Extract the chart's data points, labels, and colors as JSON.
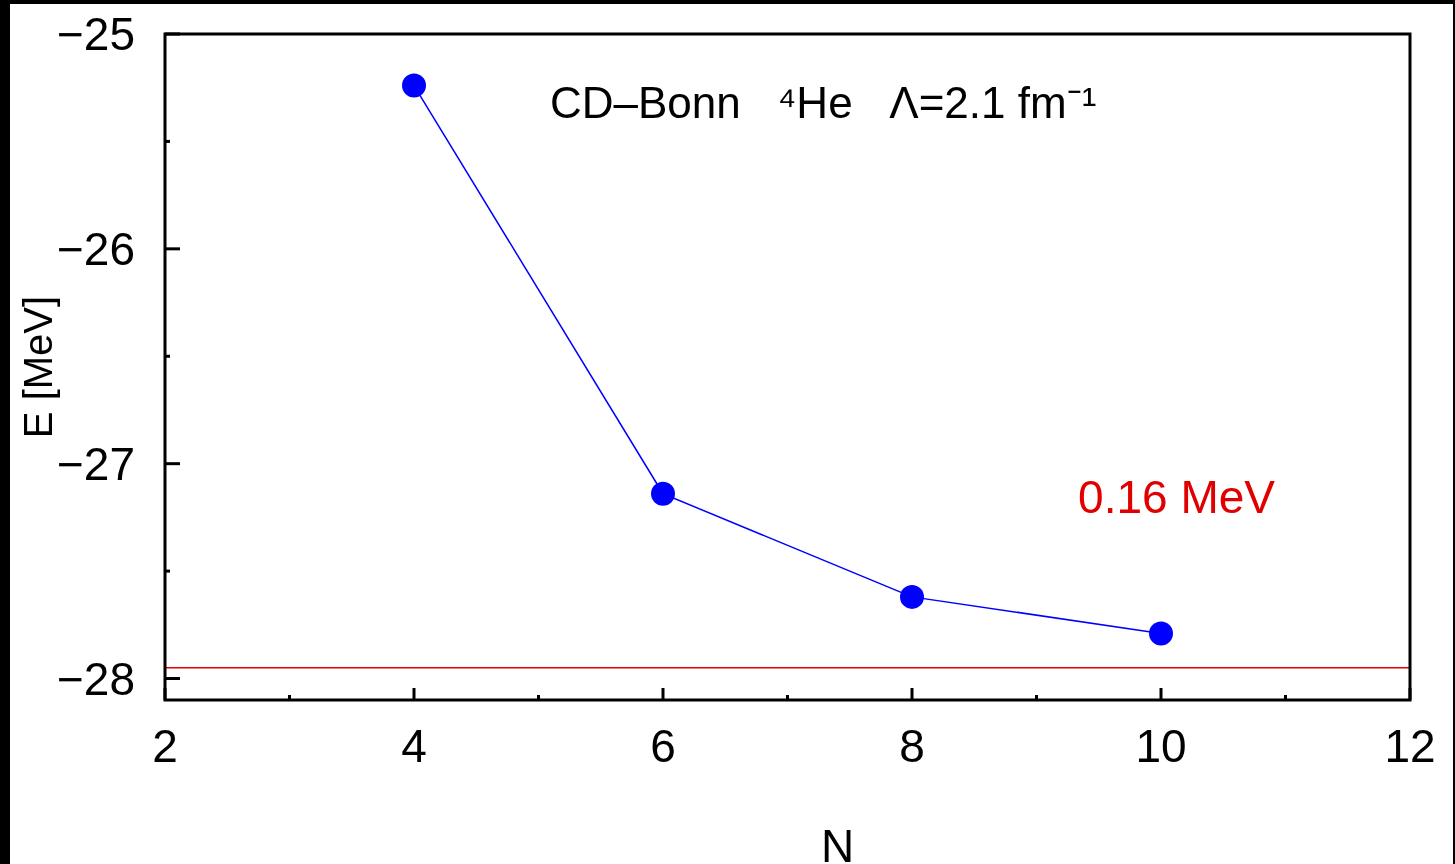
{
  "chart_data": {
    "type": "line",
    "xlabel": "N",
    "ylabel": "E [MeV]",
    "x": [
      4,
      6,
      8,
      10
    ],
    "series": [
      {
        "color": "#0000ff",
        "values": [
          -25.24,
          -27.14,
          -27.62,
          -27.79
        ]
      }
    ],
    "xlim": [
      2,
      12
    ],
    "xticks": [
      2,
      {
        "value": 3,
        "label": null
      },
      4,
      {
        "value": 5,
        "label": null
      },
      6,
      {
        "value": 7,
        "label": null
      },
      8,
      {
        "value": 9,
        "label": null
      },
      10,
      {
        "value": 11,
        "label": null
      },
      12
    ],
    "ylim": [
      -28.1,
      -25
    ],
    "yticks": [
      {
        "value": -25,
        "label": "−25"
      },
      {
        "value": -25.5,
        "label": null
      },
      {
        "value": -26,
        "label": "−26"
      },
      {
        "value": -26.5,
        "label": null
      },
      {
        "value": -27,
        "label": "−27"
      },
      {
        "value": -27.5,
        "label": null
      },
      {
        "value": -28,
        "label": "−28"
      }
    ],
    "ref_lines": [
      {
        "axis": "y",
        "value": -27.95,
        "label": "0.16 MeV",
        "color": "#e00000"
      }
    ],
    "annotations": [
      "CD–Bonn   ⁴He   Λ=2.1 fm⁻¹"
    ],
    "marker": "circle",
    "line_style": "solid",
    "grid": false
  }
}
